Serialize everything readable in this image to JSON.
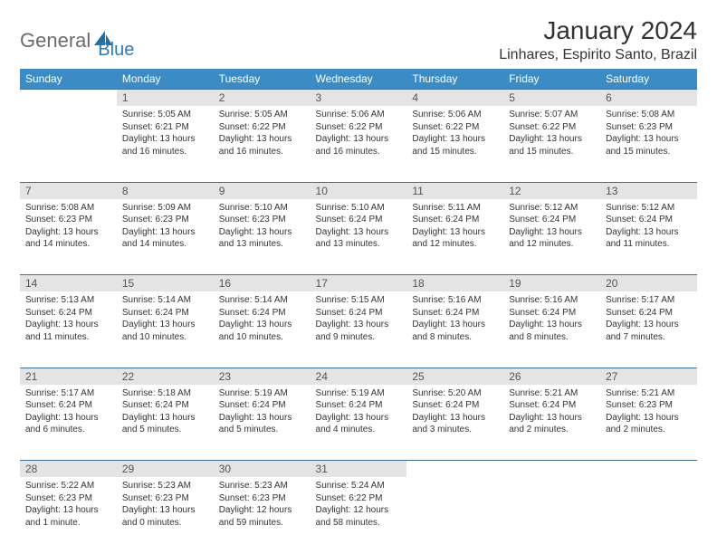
{
  "brand": {
    "part1": "General",
    "part2": "Blue"
  },
  "title": "January 2024",
  "location": "Linhares, Espirito Santo, Brazil",
  "colors": {
    "header_bg": "#3b8bc4",
    "header_text": "#ffffff",
    "daynum_bg": "#e4e4e4",
    "border": "#3b6f9a",
    "text": "#333333",
    "brand_gray": "#6b6b6b",
    "brand_blue": "#2a7ab8"
  },
  "weekdays": [
    "Sunday",
    "Monday",
    "Tuesday",
    "Wednesday",
    "Thursday",
    "Friday",
    "Saturday"
  ],
  "weeks": [
    {
      "nums": [
        "",
        "1",
        "2",
        "3",
        "4",
        "5",
        "6"
      ],
      "cells": [
        null,
        {
          "sr": "Sunrise: 5:05 AM",
          "ss": "Sunset: 6:21 PM",
          "d1": "Daylight: 13 hours",
          "d2": "and 16 minutes."
        },
        {
          "sr": "Sunrise: 5:05 AM",
          "ss": "Sunset: 6:22 PM",
          "d1": "Daylight: 13 hours",
          "d2": "and 16 minutes."
        },
        {
          "sr": "Sunrise: 5:06 AM",
          "ss": "Sunset: 6:22 PM",
          "d1": "Daylight: 13 hours",
          "d2": "and 16 minutes."
        },
        {
          "sr": "Sunrise: 5:06 AM",
          "ss": "Sunset: 6:22 PM",
          "d1": "Daylight: 13 hours",
          "d2": "and 15 minutes."
        },
        {
          "sr": "Sunrise: 5:07 AM",
          "ss": "Sunset: 6:22 PM",
          "d1": "Daylight: 13 hours",
          "d2": "and 15 minutes."
        },
        {
          "sr": "Sunrise: 5:08 AM",
          "ss": "Sunset: 6:23 PM",
          "d1": "Daylight: 13 hours",
          "d2": "and 15 minutes."
        }
      ]
    },
    {
      "nums": [
        "7",
        "8",
        "9",
        "10",
        "11",
        "12",
        "13"
      ],
      "cells": [
        {
          "sr": "Sunrise: 5:08 AM",
          "ss": "Sunset: 6:23 PM",
          "d1": "Daylight: 13 hours",
          "d2": "and 14 minutes."
        },
        {
          "sr": "Sunrise: 5:09 AM",
          "ss": "Sunset: 6:23 PM",
          "d1": "Daylight: 13 hours",
          "d2": "and 14 minutes."
        },
        {
          "sr": "Sunrise: 5:10 AM",
          "ss": "Sunset: 6:23 PM",
          "d1": "Daylight: 13 hours",
          "d2": "and 13 minutes."
        },
        {
          "sr": "Sunrise: 5:10 AM",
          "ss": "Sunset: 6:24 PM",
          "d1": "Daylight: 13 hours",
          "d2": "and 13 minutes."
        },
        {
          "sr": "Sunrise: 5:11 AM",
          "ss": "Sunset: 6:24 PM",
          "d1": "Daylight: 13 hours",
          "d2": "and 12 minutes."
        },
        {
          "sr": "Sunrise: 5:12 AM",
          "ss": "Sunset: 6:24 PM",
          "d1": "Daylight: 13 hours",
          "d2": "and 12 minutes."
        },
        {
          "sr": "Sunrise: 5:12 AM",
          "ss": "Sunset: 6:24 PM",
          "d1": "Daylight: 13 hours",
          "d2": "and 11 minutes."
        }
      ]
    },
    {
      "nums": [
        "14",
        "15",
        "16",
        "17",
        "18",
        "19",
        "20"
      ],
      "cells": [
        {
          "sr": "Sunrise: 5:13 AM",
          "ss": "Sunset: 6:24 PM",
          "d1": "Daylight: 13 hours",
          "d2": "and 11 minutes."
        },
        {
          "sr": "Sunrise: 5:14 AM",
          "ss": "Sunset: 6:24 PM",
          "d1": "Daylight: 13 hours",
          "d2": "and 10 minutes."
        },
        {
          "sr": "Sunrise: 5:14 AM",
          "ss": "Sunset: 6:24 PM",
          "d1": "Daylight: 13 hours",
          "d2": "and 10 minutes."
        },
        {
          "sr": "Sunrise: 5:15 AM",
          "ss": "Sunset: 6:24 PM",
          "d1": "Daylight: 13 hours",
          "d2": "and 9 minutes."
        },
        {
          "sr": "Sunrise: 5:16 AM",
          "ss": "Sunset: 6:24 PM",
          "d1": "Daylight: 13 hours",
          "d2": "and 8 minutes."
        },
        {
          "sr": "Sunrise: 5:16 AM",
          "ss": "Sunset: 6:24 PM",
          "d1": "Daylight: 13 hours",
          "d2": "and 8 minutes."
        },
        {
          "sr": "Sunrise: 5:17 AM",
          "ss": "Sunset: 6:24 PM",
          "d1": "Daylight: 13 hours",
          "d2": "and 7 minutes."
        }
      ]
    },
    {
      "nums": [
        "21",
        "22",
        "23",
        "24",
        "25",
        "26",
        "27"
      ],
      "cells": [
        {
          "sr": "Sunrise: 5:17 AM",
          "ss": "Sunset: 6:24 PM",
          "d1": "Daylight: 13 hours",
          "d2": "and 6 minutes."
        },
        {
          "sr": "Sunrise: 5:18 AM",
          "ss": "Sunset: 6:24 PM",
          "d1": "Daylight: 13 hours",
          "d2": "and 5 minutes."
        },
        {
          "sr": "Sunrise: 5:19 AM",
          "ss": "Sunset: 6:24 PM",
          "d1": "Daylight: 13 hours",
          "d2": "and 5 minutes."
        },
        {
          "sr": "Sunrise: 5:19 AM",
          "ss": "Sunset: 6:24 PM",
          "d1": "Daylight: 13 hours",
          "d2": "and 4 minutes."
        },
        {
          "sr": "Sunrise: 5:20 AM",
          "ss": "Sunset: 6:24 PM",
          "d1": "Daylight: 13 hours",
          "d2": "and 3 minutes."
        },
        {
          "sr": "Sunrise: 5:21 AM",
          "ss": "Sunset: 6:24 PM",
          "d1": "Daylight: 13 hours",
          "d2": "and 2 minutes."
        },
        {
          "sr": "Sunrise: 5:21 AM",
          "ss": "Sunset: 6:23 PM",
          "d1": "Daylight: 13 hours",
          "d2": "and 2 minutes."
        }
      ]
    },
    {
      "nums": [
        "28",
        "29",
        "30",
        "31",
        "",
        "",
        ""
      ],
      "cells": [
        {
          "sr": "Sunrise: 5:22 AM",
          "ss": "Sunset: 6:23 PM",
          "d1": "Daylight: 13 hours",
          "d2": "and 1 minute."
        },
        {
          "sr": "Sunrise: 5:23 AM",
          "ss": "Sunset: 6:23 PM",
          "d1": "Daylight: 13 hours",
          "d2": "and 0 minutes."
        },
        {
          "sr": "Sunrise: 5:23 AM",
          "ss": "Sunset: 6:23 PM",
          "d1": "Daylight: 12 hours",
          "d2": "and 59 minutes."
        },
        {
          "sr": "Sunrise: 5:24 AM",
          "ss": "Sunset: 6:22 PM",
          "d1": "Daylight: 12 hours",
          "d2": "and 58 minutes."
        },
        null,
        null,
        null
      ]
    }
  ]
}
